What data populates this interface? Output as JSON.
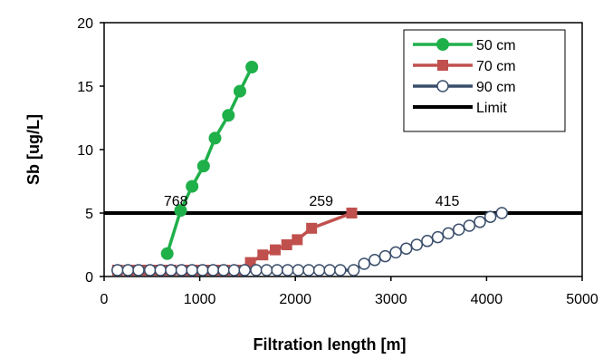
{
  "chart_data": {
    "type": "line",
    "title": "",
    "xlabel": "Filtration length [m]",
    "ylabel": "Sb [ug/L]",
    "xlim": [
      0,
      5000
    ],
    "ylim": [
      0,
      20
    ],
    "xticks": [
      0,
      1000,
      2000,
      3000,
      4000,
      5000
    ],
    "yticks": [
      0,
      5,
      10,
      15,
      20
    ],
    "grid": false,
    "legend_position": "top-right",
    "series": [
      {
        "name": "50 cm",
        "color": "#1fb04a",
        "marker": "circle-filled",
        "x": [
          660,
          800,
          920,
          1040,
          1160,
          1300,
          1420,
          1545
        ],
        "y": [
          1.8,
          5.2,
          7.1,
          8.7,
          10.9,
          12.7,
          14.6,
          16.5
        ]
      },
      {
        "name": "70 cm",
        "color": "#c0504d",
        "marker": "square-filled",
        "x": [
          140,
          260,
          370,
          480,
          590,
          700,
          820,
          930,
          1040,
          1150,
          1260,
          1380,
          1530,
          1660,
          1790,
          1910,
          2020,
          2170,
          2590
        ],
        "y": [
          0.5,
          0.5,
          0.5,
          0.5,
          0.5,
          0.5,
          0.5,
          0.5,
          0.5,
          0.5,
          0.5,
          0.5,
          1.1,
          1.7,
          2.1,
          2.5,
          2.9,
          3.8,
          5.0
        ]
      },
      {
        "name": "90 cm",
        "color": "#3a4e6b",
        "marker": "circle-open",
        "x": [
          140,
          250,
          360,
          480,
          590,
          700,
          810,
          920,
          1030,
          1140,
          1250,
          1360,
          1470,
          1590,
          1700,
          1810,
          1920,
          2030,
          2140,
          2250,
          2360,
          2470,
          2610,
          2720,
          2830,
          2940,
          3050,
          3160,
          3270,
          3380,
          3490,
          3600,
          3710,
          3820,
          3930,
          4040,
          4160
        ],
        "y": [
          0.5,
          0.5,
          0.5,
          0.5,
          0.5,
          0.5,
          0.5,
          0.5,
          0.5,
          0.5,
          0.5,
          0.5,
          0.5,
          0.5,
          0.5,
          0.5,
          0.5,
          0.5,
          0.5,
          0.5,
          0.5,
          0.5,
          0.5,
          1.0,
          1.3,
          1.6,
          1.9,
          2.2,
          2.5,
          2.8,
          3.1,
          3.4,
          3.7,
          4.0,
          4.3,
          4.7,
          5.0
        ]
      },
      {
        "name": "Limit",
        "color": "#000000",
        "marker": "none",
        "x": [
          0,
          5000
        ],
        "y": [
          5,
          5
        ]
      }
    ],
    "annotations": [
      {
        "text": "768",
        "x": 750,
        "y": 6.0
      },
      {
        "text": "259",
        "x": 2270,
        "y": 6.0
      },
      {
        "text": "415",
        "x": 3590,
        "y": 6.0
      }
    ]
  }
}
